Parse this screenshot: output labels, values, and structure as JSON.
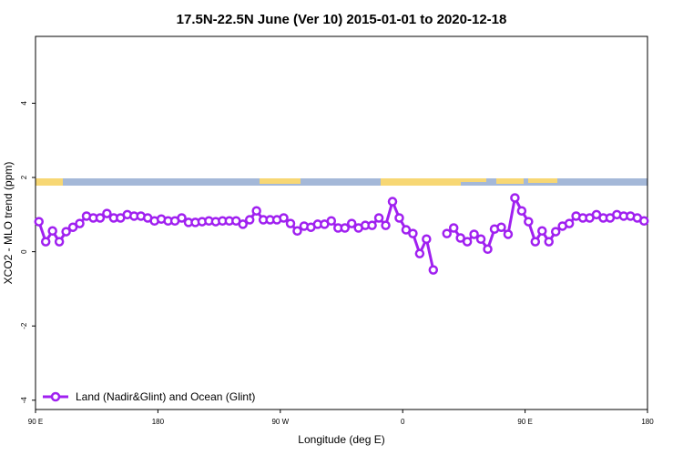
{
  "chart_data": {
    "type": "line",
    "title": "17.5N-22.5N June (Ver 10)   2015-01-01 to 2020-12-18",
    "x_label": "Longitude (deg E)",
    "y_label": "XCO2 - MLO trend (ppm)",
    "xlim": [
      90,
      540
    ],
    "xticks": [
      {
        "value": 90,
        "label": "90 E"
      },
      180,
      {
        "value": 270,
        "label": "90 W"
      },
      {
        "value": 360,
        "label": "0"
      },
      {
        "value": 450,
        "label": "90 E"
      },
      {
        "value": 540,
        "label": "180"
      }
    ],
    "ylim": [
      -4.25,
      5.8
    ],
    "yticks": [
      -4,
      -2,
      0,
      2,
      4
    ],
    "legend": "lower left",
    "x": [
      92.5,
      97.5,
      102.5,
      107.5,
      112.5,
      117.5,
      122.5,
      127.5,
      132.5,
      137.5,
      142.5,
      147.5,
      152.5,
      157.5,
      162.5,
      167.5,
      172.5,
      177.5,
      182.5,
      187.5,
      192.5,
      197.5,
      202.5,
      207.5,
      212.5,
      217.5,
      222.5,
      227.5,
      232.5,
      237.5,
      242.5,
      247.5,
      252.5,
      257.5,
      262.5,
      267.5,
      272.5,
      277.5,
      282.5,
      287.5,
      292.5,
      297.5,
      302.5,
      307.5,
      312.5,
      317.5,
      322.5,
      327.5,
      332.5,
      337.5,
      342.5,
      347.5,
      352.5,
      357.5,
      362.5,
      367.5,
      372.5,
      377.5,
      382.5,
      387.5,
      392.5,
      397.5,
      402.5,
      407.5,
      412.5,
      417.5,
      422.5,
      427.5,
      432.5,
      437.5,
      442.5,
      447.5,
      452.5,
      457.5,
      462.5,
      467.5,
      472.5,
      477.5,
      482.5,
      487.5,
      492.5,
      497.5,
      502.5,
      507.5,
      512.5,
      517.5,
      522.5,
      527.5,
      532.5,
      537.5
    ],
    "series": [
      {
        "name": "Land (Nadir&Glint) and Ocean (Glint)",
        "color": "#a020f0",
        "values": [
          0.81,
          0.27,
          0.56,
          0.27,
          0.54,
          0.66,
          0.76,
          0.96,
          0.91,
          0.91,
          1.03,
          0.91,
          0.91,
          1.0,
          0.96,
          0.96,
          0.91,
          0.83,
          0.88,
          0.83,
          0.83,
          0.91,
          0.79,
          0.79,
          0.81,
          0.83,
          0.81,
          0.83,
          0.83,
          0.83,
          0.74,
          0.86,
          1.1,
          0.86,
          0.86,
          0.86,
          0.91,
          0.76,
          0.56,
          0.69,
          0.66,
          0.74,
          0.74,
          0.83,
          0.64,
          0.64,
          0.76,
          0.64,
          0.71,
          0.71,
          0.91,
          0.71,
          1.35,
          0.91,
          0.59,
          0.49,
          -0.05,
          0.34,
          -0.49,
          null,
          0.49,
          0.64,
          0.37,
          0.27,
          0.47,
          0.34,
          0.07,
          0.61,
          0.66,
          0.47,
          1.45,
          1.1,
          0.81,
          0.27,
          0.56,
          0.27,
          0.54,
          0.69,
          0.76,
          0.96,
          0.91,
          0.91,
          1.0,
          0.91,
          0.91,
          1.0,
          0.96,
          0.96,
          0.91,
          0.83
        ]
      }
    ]
  }
}
